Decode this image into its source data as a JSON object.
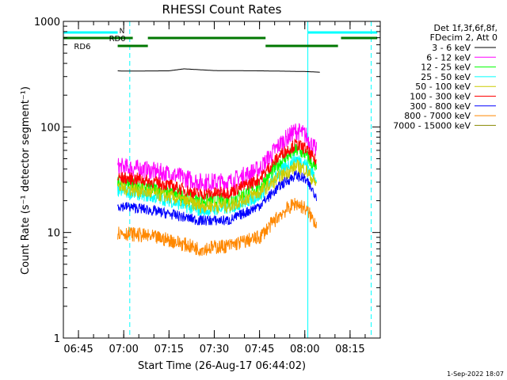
{
  "chart_data": {
    "type": "line",
    "title": "RHESSI Count Rates",
    "xlabel": "Start Time (26-Aug-17 06:44:02)",
    "ylabel": "Count Rate (s⁻¹ detector segment⁻¹)",
    "y_scale": "log",
    "ylim": [
      1,
      1000
    ],
    "xlim": [
      "06:40",
      "08:25"
    ],
    "x_ticks": [
      "06:45",
      "07:00",
      "07:15",
      "07:30",
      "07:45",
      "08:00",
      "08:15"
    ],
    "y_ticks": [
      "1",
      "10",
      "100",
      "1000"
    ],
    "legend_position": "right",
    "legend_header": [
      "Det 1f,3f,6f,8f,",
      "FDecim 2, Att 0"
    ],
    "timestamp": "1-Sep-2022 18:07",
    "series": [
      {
        "name": "3 - 6 keV",
        "color": "#000000",
        "x": [
          "06:58",
          "07:00",
          "07:15",
          "07:20",
          "07:30",
          "07:45",
          "08:00",
          "08:05"
        ],
        "y": [
          340,
          338,
          340,
          355,
          342,
          340,
          335,
          330
        ]
      },
      {
        "name": "6 - 12 keV",
        "color": "#ff00ff",
        "x": [
          "06:58",
          "07:05",
          "07:15",
          "07:25",
          "07:35",
          "07:45",
          "07:52",
          "07:57",
          "08:00",
          "08:04"
        ],
        "y": [
          42,
          40,
          36,
          30,
          30,
          40,
          70,
          92,
          85,
          58
        ]
      },
      {
        "name": "12 - 25 keV",
        "color": "#00ff00",
        "x": [
          "06:58",
          "07:05",
          "07:15",
          "07:25",
          "07:35",
          "07:45",
          "07:52",
          "07:57",
          "08:00",
          "08:04"
        ],
        "y": [
          30,
          28,
          24,
          20,
          20,
          27,
          47,
          60,
          56,
          38
        ]
      },
      {
        "name": "25 - 50 keV",
        "color": "#00ffff",
        "x": [
          "06:58",
          "07:05",
          "07:15",
          "07:25",
          "07:35",
          "07:45",
          "07:52",
          "07:57",
          "08:00",
          "08:04"
        ],
        "y": [
          25,
          23,
          20,
          16,
          17,
          22,
          38,
          50,
          46,
          32
        ]
      },
      {
        "name": "50 - 100 keV",
        "color": "#cccc00",
        "x": [
          "06:58",
          "07:05",
          "07:15",
          "07:25",
          "07:35",
          "07:45",
          "07:52",
          "07:57",
          "08:00",
          "08:04"
        ],
        "y": [
          27,
          25,
          22,
          18,
          18,
          24,
          34,
          42,
          40,
          28
        ]
      },
      {
        "name": "100 - 300 keV",
        "color": "#ff0000",
        "x": [
          "06:58",
          "07:05",
          "07:15",
          "07:25",
          "07:35",
          "07:45",
          "07:52",
          "07:57",
          "08:00",
          "08:04"
        ],
        "y": [
          33,
          32,
          28,
          23,
          24,
          32,
          55,
          68,
          63,
          46
        ]
      },
      {
        "name": "300 - 800 keV",
        "color": "#0000ff",
        "x": [
          "06:58",
          "07:05",
          "07:15",
          "07:25",
          "07:35",
          "07:45",
          "07:52",
          "07:57",
          "08:00",
          "08:04"
        ],
        "y": [
          18,
          17,
          15,
          13,
          13,
          18,
          28,
          35,
          32,
          22
        ]
      },
      {
        "name": "800 - 7000 keV",
        "color": "#ff8800",
        "x": [
          "06:58",
          "07:05",
          "07:15",
          "07:25",
          "07:35",
          "07:45",
          "07:52",
          "07:57",
          "08:00",
          "08:04"
        ],
        "y": [
          10,
          9.5,
          8.5,
          7,
          7.5,
          9,
          15,
          19,
          17,
          12
        ]
      },
      {
        "name": "7000 - 15000 keV",
        "color": "#888800",
        "x": [],
        "y": []
      }
    ],
    "attenuator_bars": [
      {
        "label": "N",
        "color": "#00ffff",
        "segments": [
          [
            "06:40",
            "06:58"
          ],
          [
            "08:01",
            "08:24"
          ]
        ]
      },
      {
        "label": "RD0",
        "color": "#007700",
        "segments": [
          [
            "06:40",
            "07:03"
          ],
          [
            "07:08",
            "07:47"
          ],
          [
            "08:12",
            "08:24"
          ]
        ]
      },
      {
        "label": "RD6",
        "color": "#007700",
        "segments": [
          [
            "06:58",
            "07:08"
          ],
          [
            "07:47",
            "08:11"
          ]
        ]
      }
    ],
    "vertical_markers": [
      {
        "time": "06:40",
        "color": "#00ffff",
        "style": "solid"
      },
      {
        "time": "07:02",
        "color": "#00ffff",
        "style": "dashed"
      },
      {
        "time": "08:01",
        "color": "#00ffff",
        "style": "solid"
      },
      {
        "time": "08:22",
        "color": "#00ffff",
        "style": "dashed"
      }
    ]
  }
}
